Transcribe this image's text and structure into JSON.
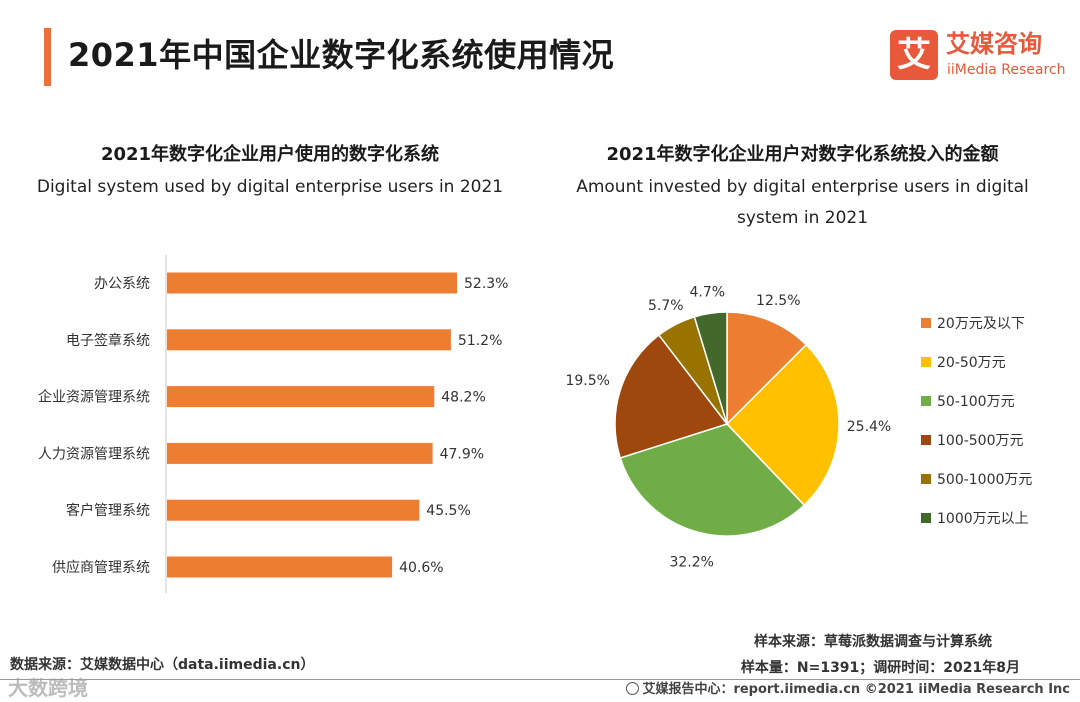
{
  "page": {
    "title": "2021年中国企业数字化系统使用情况",
    "brand": {
      "mark": "艾",
      "name": "艾媒咨询",
      "sub": "iiMedia Research",
      "color": "#e8583a"
    },
    "accent": "#ee6e3a"
  },
  "chart_data": [
    {
      "type": "bar",
      "orientation": "horizontal",
      "title": "2021年数字化企业用户使用的数字化系统",
      "subtitle": "Digital system used by digital enterprise users in 2021",
      "categories": [
        "办公系统",
        "电子签章系统",
        "企业资源管理系统",
        "人力资源管理系统",
        "客户管理系统",
        "供应商管理系统"
      ],
      "values": [
        52.3,
        51.2,
        48.2,
        47.9,
        45.5,
        40.6
      ],
      "data_labels": [
        "52.3%",
        "51.2%",
        "48.2%",
        "47.9%",
        "45.5%",
        "40.6%"
      ],
      "xlim": [
        0,
        60
      ],
      "unit": "%",
      "bar_color": "#ed7d31",
      "grid": false
    },
    {
      "type": "pie",
      "title": "2021年数字化企业用户对数字化系统投入的金额",
      "subtitle": "Amount invested by digital enterprise users in digital system in 2021",
      "subtitle_lines": [
        "Amount invested by digital enterprise users in digital",
        "system in 2021"
      ],
      "labels": [
        "20万元及以下",
        "20-50万元",
        "50-100万元",
        "100-500万元",
        "500-1000万元",
        "1000万元以上"
      ],
      "values": [
        12.5,
        25.4,
        32.2,
        19.5,
        5.7,
        4.7
      ],
      "data_labels": [
        "12.5%",
        "25.4%",
        "32.2%",
        "19.5%",
        "5.7%",
        "4.7%"
      ],
      "colors": [
        "#ed7d31",
        "#ffc000",
        "#70ad47",
        "#9e480e",
        "#997300",
        "#43682b"
      ],
      "legend_position": "right"
    }
  ],
  "footer": {
    "source_left": "数据来源：艾媒数据中心（data.iimedia.cn）",
    "sample_source": "样本来源：草莓派数据调查与计算系统",
    "sample_size": "样本量：N=1391；调研时间：2021年8月",
    "report_center": "艾媒报告中心：report.iimedia.cn  ©2021  iiMedia Research  Inc",
    "watermark": "大数跨境"
  }
}
